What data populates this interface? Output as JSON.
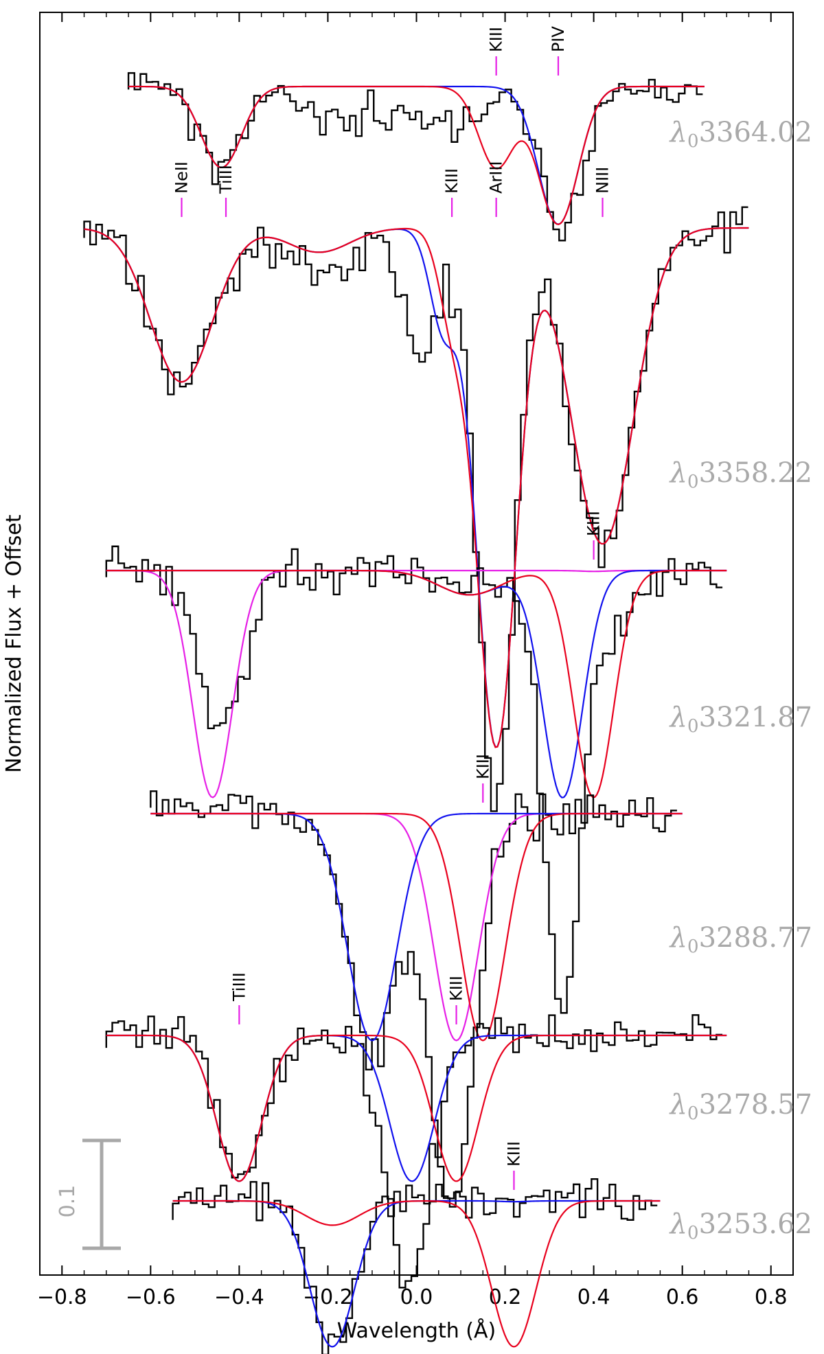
{
  "chart_data": {
    "type": "line",
    "title": "",
    "xlabel": "Wavelength (Å)",
    "ylabel": "Normalized Flux + Offset",
    "xlim": [
      -0.85,
      0.85
    ],
    "x_ticks": [
      -0.8,
      -0.6,
      -0.4,
      -0.2,
      0.0,
      0.2,
      0.4,
      0.6,
      0.8
    ],
    "x_tick_labels": [
      "−0.8",
      "−0.6",
      "−0.4",
      "−0.2",
      "0.0",
      "0.2",
      "0.4",
      "0.6",
      "0.8"
    ],
    "grid": false,
    "scale_bar": {
      "label": "0.1",
      "value": 0.1,
      "color": "#a8a8a8"
    },
    "colors": {
      "data": "#000000",
      "red": "#e8001d",
      "blue": "#1010ee",
      "magenta": "#e61fe6",
      "panel_label": "#a9a9a9",
      "scale_bar": "#a8a8a8"
    },
    "panels": [
      {
        "label": "λ₀3364.02",
        "label_prefix": "λ",
        "label_sub": "0",
        "label_value": "3364.02",
        "baseline": 1.0,
        "x_range": [
          -0.65,
          0.65
        ],
        "data_noise": 0.012,
        "seed": 11,
        "ions": [
          {
            "label": "KIII",
            "x": 0.18
          },
          {
            "label": "PIV",
            "x": 0.32
          }
        ],
        "red_components": [
          {
            "center": -0.44,
            "depth": 0.1,
            "sigma": 0.045
          },
          {
            "center": 0.18,
            "depth": 0.1,
            "sigma": 0.04
          },
          {
            "center": 0.32,
            "depth": 0.17,
            "sigma": 0.045
          }
        ],
        "blue_components": [
          {
            "center": -0.44,
            "depth": 0.1,
            "sigma": 0.045
          },
          {
            "center": 0.32,
            "depth": 0.17,
            "sigma": 0.045
          }
        ],
        "magenta_components": [],
        "data_components": [
          {
            "center": -0.44,
            "depth": 0.1,
            "sigma": 0.05
          },
          {
            "center": -0.15,
            "depth": 0.04,
            "sigma": 0.1
          },
          {
            "center": 0.1,
            "depth": 0.04,
            "sigma": 0.1
          },
          {
            "center": 0.33,
            "depth": 0.17,
            "sigma": 0.045
          }
        ]
      },
      {
        "label": "λ₀3358.22",
        "label_prefix": "λ",
        "label_sub": "0",
        "label_value": "3358.22",
        "baseline": 1.0,
        "x_range": [
          -0.75,
          0.75
        ],
        "data_noise": 0.014,
        "seed": 23,
        "ions": [
          {
            "label": "NeII",
            "x": -0.53
          },
          {
            "label": "TiIII",
            "x": -0.43
          },
          {
            "label": "KIII",
            "x": 0.08
          },
          {
            "label": "ArIII",
            "x": 0.18
          },
          {
            "label": "NIII",
            "x": 0.42
          }
        ],
        "red_components": [
          {
            "center": -0.53,
            "depth": 0.19,
            "sigma": 0.07
          },
          {
            "center": -0.22,
            "depth": 0.03,
            "sigma": 0.07
          },
          {
            "center": 0.08,
            "depth": 0.1,
            "sigma": 0.03
          },
          {
            "center": 0.18,
            "depth": 0.64,
            "sigma": 0.045
          },
          {
            "center": 0.42,
            "depth": 0.39,
            "sigma": 0.07
          }
        ],
        "blue_components": [
          {
            "center": -0.53,
            "depth": 0.19,
            "sigma": 0.07
          },
          {
            "center": -0.22,
            "depth": 0.03,
            "sigma": 0.07
          },
          {
            "center": 0.06,
            "depth": 0.12,
            "sigma": 0.03
          },
          {
            "center": 0.18,
            "depth": 0.64,
            "sigma": 0.045
          },
          {
            "center": 0.42,
            "depth": 0.39,
            "sigma": 0.07
          }
        ],
        "magenta_components": [],
        "data_components": [
          {
            "center": -0.53,
            "depth": 0.2,
            "sigma": 0.07
          },
          {
            "center": -0.22,
            "depth": 0.05,
            "sigma": 0.08
          },
          {
            "center": 0.01,
            "depth": 0.16,
            "sigma": 0.04
          },
          {
            "center": 0.18,
            "depth": 0.74,
            "sigma": 0.04
          },
          {
            "center": 0.42,
            "depth": 0.4,
            "sigma": 0.07
          }
        ]
      },
      {
        "label": "λ₀3321.87",
        "label_prefix": "λ",
        "label_sub": "0",
        "label_value": "3321.87",
        "baseline": 1.0,
        "x_range": [
          -0.7,
          0.7
        ],
        "data_noise": 0.012,
        "seed": 37,
        "ions": [
          {
            "label": "KIII",
            "x": 0.4
          }
        ],
        "red_components": [
          {
            "center": 0.12,
            "depth": 0.03,
            "sigma": 0.07
          },
          {
            "center": 0.4,
            "depth": 0.28,
            "sigma": 0.045
          }
        ],
        "blue_components": [
          {
            "center": 0.12,
            "depth": 0.03,
            "sigma": 0.07
          },
          {
            "center": 0.33,
            "depth": 0.28,
            "sigma": 0.045
          }
        ],
        "magenta_components": [
          {
            "center": -0.46,
            "depth": 0.28,
            "sigma": 0.045
          },
          {
            "center": 0.4,
            "depth": 0.001,
            "sigma": 0.03
          }
        ],
        "data_components": [
          {
            "center": -0.44,
            "depth": 0.2,
            "sigma": 0.05
          },
          {
            "center": 0.14,
            "depth": 0.02,
            "sigma": 0.08
          },
          {
            "center": 0.33,
            "depth": 0.55,
            "sigma": 0.04
          },
          {
            "center": 0.45,
            "depth": 0.08,
            "sigma": 0.04
          }
        ]
      },
      {
        "label": "λ₀3288.77",
        "label_prefix": "λ",
        "label_sub": "0",
        "label_value": "3288.77",
        "baseline": 1.0,
        "x_range": [
          -0.6,
          0.6
        ],
        "data_noise": 0.012,
        "seed": 53,
        "ions": [
          {
            "label": "KIII",
            "x": 0.15
          }
        ],
        "red_components": [
          {
            "center": 0.15,
            "depth": 0.28,
            "sigma": 0.05
          }
        ],
        "blue_components": [
          {
            "center": -0.1,
            "depth": 0.28,
            "sigma": 0.055
          }
        ],
        "magenta_components": [
          {
            "center": 0.09,
            "depth": 0.28,
            "sigma": 0.05
          }
        ],
        "data_components": [
          {
            "center": -0.1,
            "depth": 0.3,
            "sigma": 0.055
          },
          {
            "center": 0.08,
            "depth": 0.48,
            "sigma": 0.05
          }
        ]
      },
      {
        "label": "λ₀3278.57",
        "label_prefix": "λ",
        "label_sub": "0",
        "label_value": "3278.57",
        "baseline": 1.0,
        "x_range": [
          -0.7,
          0.7
        ],
        "data_noise": 0.012,
        "seed": 67,
        "ions": [
          {
            "label": "TiIII",
            "x": -0.4
          },
          {
            "label": "KIII",
            "x": 0.09
          }
        ],
        "red_components": [
          {
            "center": -0.4,
            "depth": 0.18,
            "sigma": 0.05
          },
          {
            "center": 0.09,
            "depth": 0.18,
            "sigma": 0.05
          }
        ],
        "blue_components": [
          {
            "center": -0.4,
            "depth": 0.18,
            "sigma": 0.05
          },
          {
            "center": -0.01,
            "depth": 0.18,
            "sigma": 0.05
          }
        ],
        "magenta_components": [],
        "data_components": [
          {
            "center": -0.4,
            "depth": 0.18,
            "sigma": 0.05
          },
          {
            "center": -0.02,
            "depth": 0.3,
            "sigma": 0.05
          }
        ]
      },
      {
        "label": "λ₀3253.62",
        "label_prefix": "λ",
        "label_sub": "0",
        "label_value": "3253.62",
        "baseline": 1.0,
        "x_range": [
          -0.55,
          0.55
        ],
        "data_noise": 0.012,
        "seed": 79,
        "ions": [
          {
            "label": "KIII",
            "x": 0.22
          }
        ],
        "red_components": [
          {
            "center": -0.19,
            "depth": 0.03,
            "sigma": 0.06
          },
          {
            "center": 0.22,
            "depth": 0.18,
            "sigma": 0.05
          }
        ],
        "blue_components": [
          {
            "center": -0.19,
            "depth": 0.18,
            "sigma": 0.05
          },
          {
            "center": 0.22,
            "depth": 0.001,
            "sigma": 0.03
          }
        ],
        "magenta_components": [],
        "data_components": [
          {
            "center": -0.19,
            "depth": 0.18,
            "sigma": 0.05
          }
        ]
      }
    ]
  }
}
